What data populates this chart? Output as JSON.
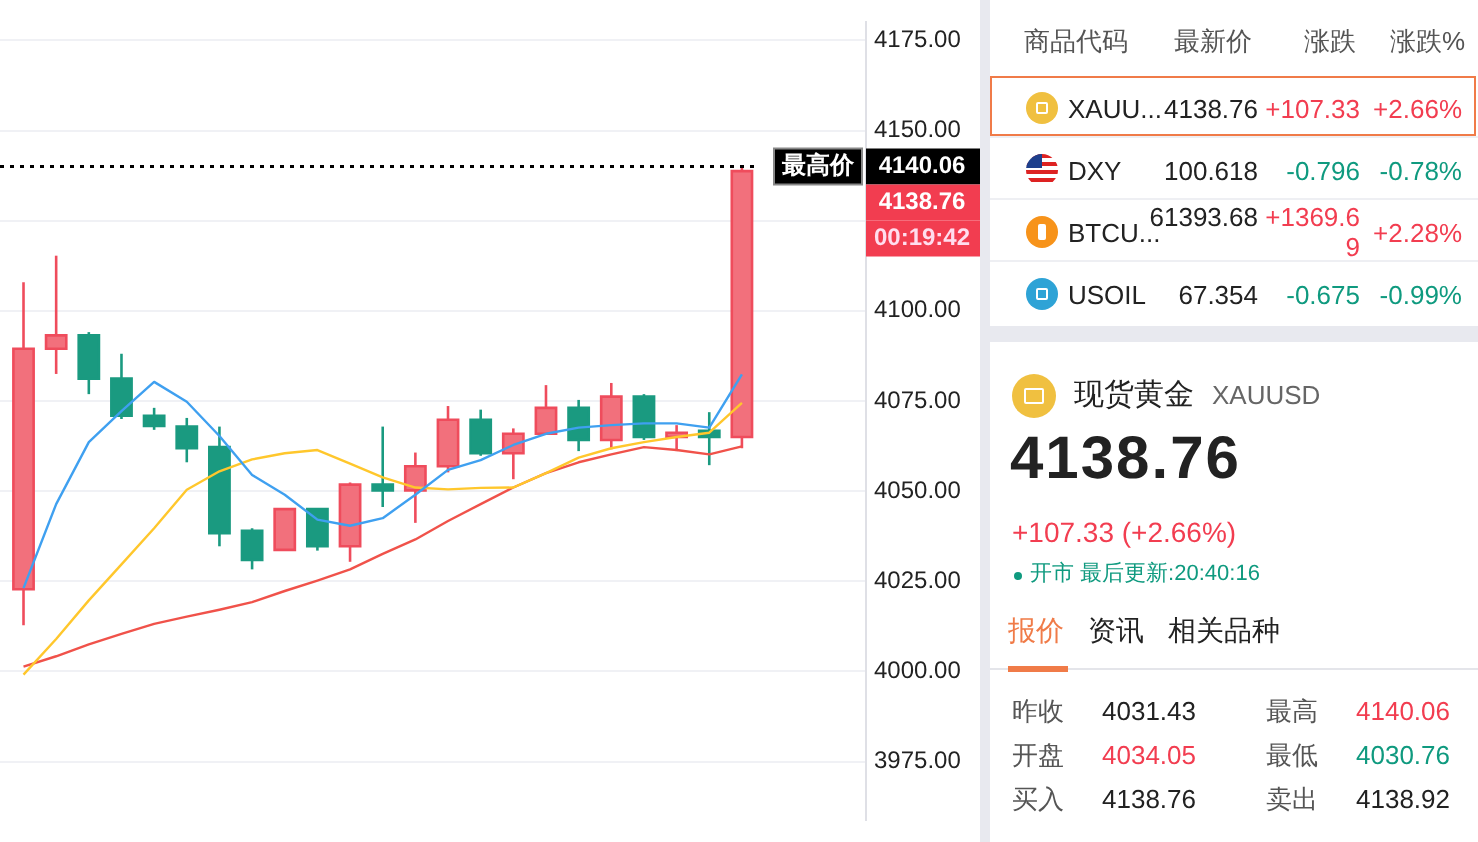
{
  "chart_data": [
    {
      "type": "candlestick",
      "categories": [
        null,
        null,
        null,
        null,
        null,
        null,
        null,
        null,
        null,
        null,
        null,
        null,
        null,
        null,
        null,
        null,
        null,
        null,
        null,
        null,
        null,
        null,
        null
      ],
      "ohlc": [
        [
          4022.8,
          4107.9,
          4012.8,
          4089.5
        ],
        [
          4089.5,
          4115.3,
          4082.5,
          4093.2
        ],
        [
          4093.2,
          4094.1,
          4076.9,
          4081.2
        ],
        [
          4081.2,
          4088.1,
          4070.0,
          4070.9
        ],
        [
          4070.9,
          4073.1,
          4067.0,
          4068.1
        ],
        [
          4067.9,
          4070.3,
          4058.0,
          4061.9
        ],
        [
          4062.2,
          4067.9,
          4034.7,
          4038.3
        ],
        [
          4039.0,
          4039.7,
          4028.3,
          4030.9
        ],
        [
          4033.7,
          4045.0,
          4033.7,
          4045.0
        ],
        [
          4045.0,
          4045.0,
          4033.5,
          4034.7
        ],
        [
          4034.7,
          4052.4,
          4030.4,
          4051.8
        ],
        [
          4051.8,
          4067.9,
          4045.6,
          4050.2
        ],
        [
          4050.2,
          4060.7,
          4041.2,
          4056.9
        ],
        [
          4056.9,
          4073.6,
          4055.2,
          4069.8
        ],
        [
          4069.8,
          4072.6,
          4059.8,
          4060.5
        ],
        [
          4060.5,
          4067.4,
          4053.3,
          4065.9
        ],
        [
          4065.9,
          4079.4,
          4065.9,
          4073.1
        ],
        [
          4073.1,
          4075.3,
          4061.1,
          4064.2
        ],
        [
          4064.2,
          4080.0,
          4061.6,
          4076.2
        ],
        [
          4076.2,
          4076.9,
          4064.2,
          4065.0
        ],
        [
          4065.0,
          4068.3,
          4061.1,
          4066.2
        ],
        [
          4066.7,
          4071.9,
          4057.2,
          4065.0
        ],
        [
          4065.0,
          4140.06,
          4061.9,
          4138.76
        ]
      ],
      "series": [
        {
          "type": "line",
          "color": "#3fa0f0",
          "values": [
            4023.1,
            4046.4,
            4063.6,
            4072.2,
            4080.3,
            4074.8,
            4065.3,
            4054.5,
            4049.0,
            4042.1,
            4040.4,
            4042.5,
            4049.0,
            4055.9,
            4058.6,
            4062.8,
            4065.9,
            4067.6,
            4068.3,
            4068.8,
            4068.8,
            4067.6,
            4082.4
          ]
        },
        {
          "type": "line",
          "color": "#ffc72c",
          "values": [
            3999.1,
            4009.0,
            4019.7,
            4029.7,
            4039.7,
            4050.4,
            4055.5,
            4058.8,
            4060.5,
            4061.4,
            4057.6,
            4053.8,
            4051.0,
            4050.5,
            4050.9,
            4051.0,
            4055.0,
            4059.3,
            4061.9,
            4063.6,
            4065.0,
            4066.2,
            4074.5
          ]
        },
        {
          "type": "line",
          "color": "#f0524a",
          "values": [
            4001.3,
            4004.2,
            4007.5,
            4010.4,
            4013.2,
            4015.2,
            4017.1,
            4019.2,
            4022.3,
            4025.2,
            4028.3,
            4032.6,
            4036.6,
            4041.7,
            4046.4,
            4051.0,
            4055.0,
            4058.0,
            4060.2,
            4062.2,
            4061.4,
            4060.2,
            4062.4
          ]
        }
      ],
      "ylim": [
        3958.9,
        4180
      ],
      "yticks": [
        {
          "value": 3975,
          "label": "3975.00"
        },
        {
          "value": 4000,
          "label": "4000.00"
        },
        {
          "value": 4025,
          "label": "4025.00"
        },
        {
          "value": 4050,
          "label": "4050.00"
        },
        {
          "value": 4075,
          "label": "4075.00"
        },
        {
          "value": 4100,
          "label": "4100.00"
        },
        {
          "value": 4125,
          "label": null
        },
        {
          "value": 4150,
          "label": "4150.00"
        },
        {
          "value": 4175,
          "label": "4175.00"
        }
      ],
      "grid": "y",
      "ref_lines": [
        {
          "axis": "y",
          "value": 4140.06,
          "label": "最高价",
          "line_style": "dotted",
          "color": "#000000"
        }
      ],
      "annotations": [
        "4138.76",
        "00:19:42"
      ]
    },
    {
      "type": "other",
      "annotations": [
        "商品代码",
        "最新价",
        "涨跌",
        "涨跌%",
        "XAUU...",
        "4138.76",
        "+107.33",
        "+2.66%",
        "DXY",
        "100.618",
        "-0.796",
        "-0.78%",
        "BTCU...",
        "61393.68",
        "+1369.69",
        "+2.28%",
        "USOIL",
        "67.354",
        "-0.675",
        "-0.99%",
        "现货黄金",
        "XAUUSD",
        "4138.76",
        "+107.33 (+2.66%)",
        "开市 最后更新:20:40:16",
        "报价",
        "资讯",
        "相关品种",
        "昨收",
        "4031.43",
        "最高",
        "4140.06",
        "开盘",
        "4034.05",
        "最低",
        "4030.76",
        "买入",
        "4138.76",
        "卖出",
        "4138.92"
      ]
    }
  ]
}
